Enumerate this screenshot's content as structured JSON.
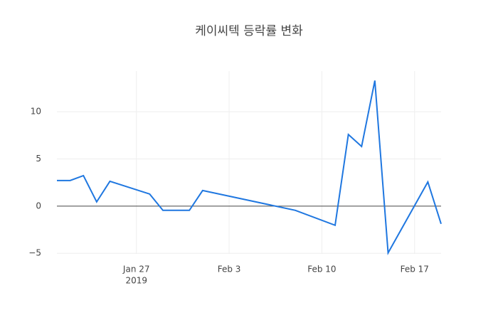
{
  "chart_data": {
    "type": "line",
    "title": "케이씨텍 등락률 변화",
    "x": [
      "2019-01-21",
      "2019-01-22",
      "2019-01-23",
      "2019-01-24",
      "2019-01-25",
      "2019-01-28",
      "2019-01-29",
      "2019-01-31",
      "2019-02-01",
      "2019-02-08",
      "2019-02-11",
      "2019-02-12",
      "2019-02-13",
      "2019-02-14",
      "2019-02-15",
      "2019-02-18",
      "2019-02-19"
    ],
    "series": [
      {
        "color": "#1f77e0",
        "values": [
          2.71,
          2.71,
          3.23,
          0.45,
          2.63,
          1.28,
          -0.45,
          -0.45,
          1.65,
          -0.45,
          -2.03,
          7.59,
          6.32,
          13.3,
          -4.96,
          2.56,
          -1.88
        ]
      }
    ],
    "xlim": [
      "2019-01-21",
      "2019-02-19"
    ],
    "xticks": [
      {
        "value": "2019-01-27",
        "label": "Jan 27"
      },
      {
        "value": "2019-02-03",
        "label": "Feb 3"
      },
      {
        "value": "2019-02-10",
        "label": "Feb 10"
      },
      {
        "value": "2019-02-17",
        "label": "Feb 17"
      }
    ],
    "x_year_label": "2019",
    "ylim": [
      -5.06,
      14.3
    ],
    "yticks": [
      {
        "value": -5,
        "label": "−5"
      },
      0,
      5,
      10
    ],
    "grid": true,
    "zeroline": true
  }
}
